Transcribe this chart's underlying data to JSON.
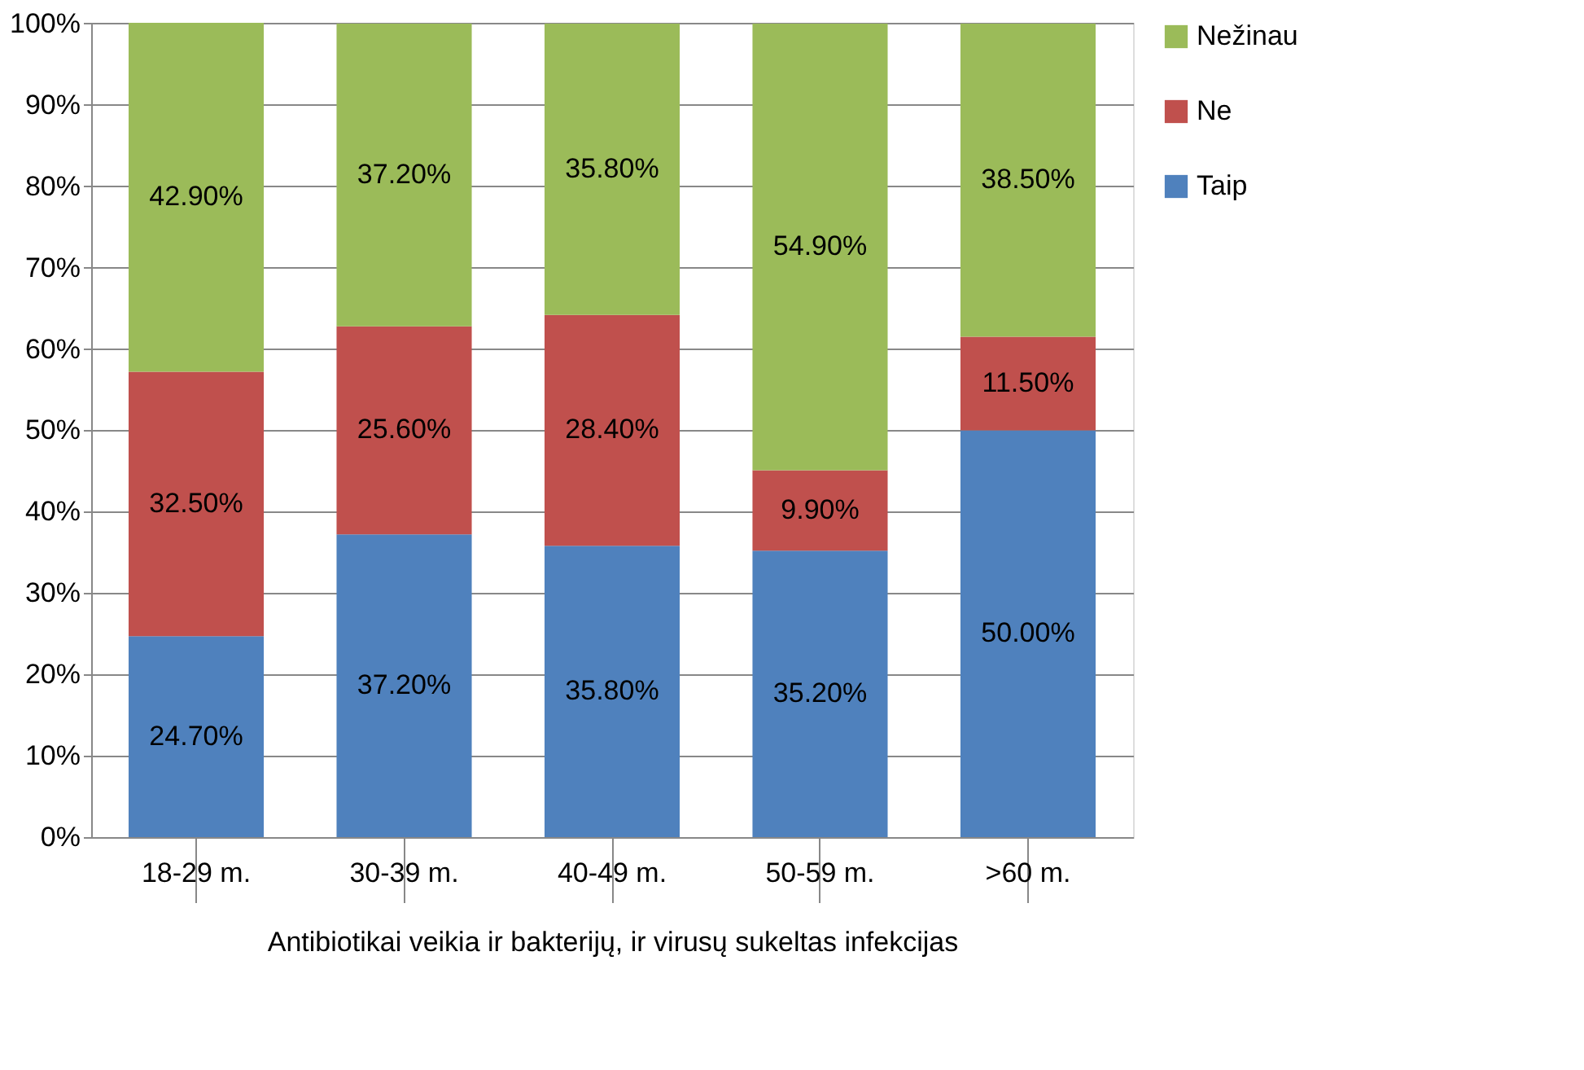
{
  "chart_data": {
    "type": "bar",
    "stacked": true,
    "xlabel": "Antibiotikai veikia ir bakterijų, ir virusų sukeltas infekcijas",
    "categories": [
      "18-29 m.",
      "30-39 m.",
      "40-49 m.",
      "50-59 m.",
      ">60 m."
    ],
    "series": [
      {
        "name": "Taip",
        "color": "#4f81bd",
        "values": [
          24.7,
          37.2,
          35.8,
          35.2,
          50.0
        ],
        "value_labels": [
          "24.70%",
          "37.20%",
          "35.80%",
          "35.20%",
          "50.00%"
        ]
      },
      {
        "name": "Ne",
        "color": "#c0504d",
        "values": [
          32.5,
          25.6,
          28.4,
          9.9,
          11.5
        ],
        "value_labels": [
          "32.50%",
          "25.60%",
          "28.40%",
          "9.90%",
          "11.50%"
        ]
      },
      {
        "name": "Nežinau",
        "color": "#9bbb59",
        "values": [
          42.9,
          37.2,
          35.8,
          54.9,
          38.5
        ],
        "value_labels": [
          "42.90%",
          "37.20%",
          "35.80%",
          "54.90%",
          "38.50%"
        ]
      }
    ],
    "ylim": [
      0,
      100.1
    ],
    "yticks": [
      {
        "value": 0,
        "label": "0%"
      },
      {
        "value": 10,
        "label": "10%"
      },
      {
        "value": 20,
        "label": "20%"
      },
      {
        "value": 30,
        "label": "30%"
      },
      {
        "value": 40,
        "label": "40%"
      },
      {
        "value": 50,
        "label": "50%"
      },
      {
        "value": 60,
        "label": "60%"
      },
      {
        "value": 70,
        "label": "70%"
      },
      {
        "value": 80,
        "label": "80%"
      },
      {
        "value": 90,
        "label": "90%"
      },
      {
        "value": 100,
        "label": "100%"
      }
    ],
    "grid": "y",
    "legend": "right"
  }
}
